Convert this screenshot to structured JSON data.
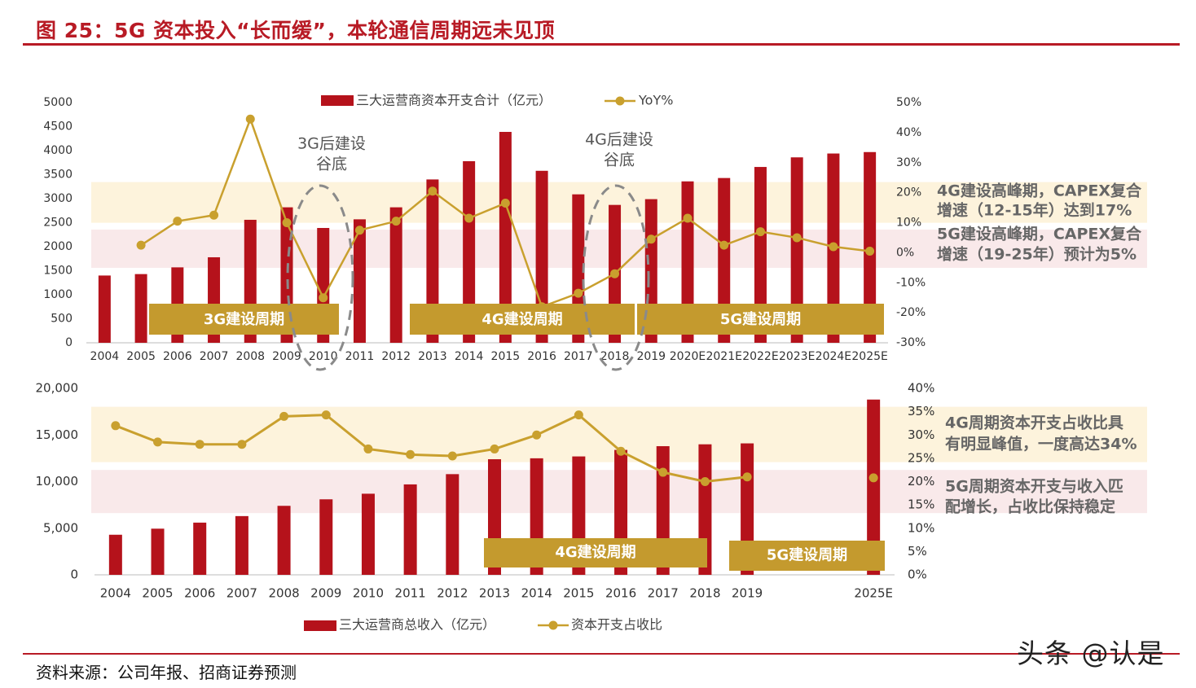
{
  "figure": {
    "title": "图 25：5G 资本投入“长而缓”，本轮通信周期远未见顶",
    "source": "资料来源：公司年报、招商证券预测",
    "watermark": "头条 @认是"
  },
  "colors": {
    "bar": "#b5121b",
    "line": "#c9a02e",
    "label_box": "#c49a2e",
    "band_yellow": "#fdf3dc",
    "band_pink": "#f9e9ea",
    "annotation_text": "#666666",
    "brand_red": "#b81b25"
  },
  "chart_data": [
    {
      "type": "bar",
      "categories": [
        "2004",
        "2005",
        "2006",
        "2007",
        "2008",
        "2009",
        "2010",
        "2011",
        "2012",
        "2013",
        "2014",
        "2015",
        "2016",
        "2017",
        "2018",
        "2019",
        "2020E",
        "2021E",
        "2022E",
        "2023E",
        "2024E",
        "2025E"
      ],
      "series": [
        {
          "name": "三大运营商资本开支合计（亿元）",
          "type": "bar",
          "axis": "left",
          "values": [
            1400,
            1430,
            1570,
            1780,
            2560,
            2820,
            2390,
            2570,
            2820,
            3400,
            3780,
            4390,
            3580,
            3090,
            2870,
            2990,
            3360,
            3430,
            3660,
            3860,
            3940,
            3970
          ]
        },
        {
          "name": "YoY%",
          "type": "line",
          "axis": "right",
          "values": [
            null,
            2.5,
            10.5,
            12.5,
            44.5,
            10,
            -15,
            7.5,
            10.5,
            20.5,
            11.5,
            16.5,
            -18,
            -13.5,
            -7,
            4.5,
            11.5,
            2.5,
            7,
            5,
            2,
            0.5
          ]
        }
      ],
      "ylim": [
        0,
        5000
      ],
      "yticks": [
        "5000",
        "4500",
        "4000",
        "3500",
        "3000",
        "2500",
        "2000",
        "1500",
        "1000",
        "500",
        "0"
      ],
      "y2lim": [
        -30,
        50
      ],
      "y2ticks": [
        "50%",
        "40%",
        "30%",
        "20%",
        "10%",
        "0%",
        "-10%",
        "-20%",
        "-30%"
      ],
      "legend_position": "top-center",
      "period_labels": [
        "3G建设周期",
        "4G建设周期",
        "5G建设周期"
      ],
      "trough_labels": [
        [
          "3G后建设",
          "谷底"
        ],
        [
          "4G后建设",
          "谷底"
        ]
      ],
      "annotations": [
        [
          "4G建设高峰期，CAPEX复合",
          "增速（12-15年）达到17%"
        ],
        [
          "5G建设高峰期，CAPEX复合",
          "增速（19-25年）预计为5%"
        ]
      ]
    },
    {
      "type": "bar",
      "categories": [
        "2004",
        "2005",
        "2006",
        "2007",
        "2008",
        "2009",
        "2010",
        "2011",
        "2012",
        "2013",
        "2014",
        "2015",
        "2016",
        "2017",
        "2018",
        "2019",
        "2025E"
      ],
      "series": [
        {
          "name": "三大运营商总收入（亿元）",
          "type": "bar",
          "axis": "left",
          "values": [
            4300,
            4950,
            5600,
            6300,
            7400,
            8100,
            8700,
            9700,
            10800,
            12400,
            12500,
            12700,
            13400,
            13800,
            14000,
            14100,
            18800
          ]
        },
        {
          "name": "资本开支占收比",
          "type": "line",
          "axis": "right",
          "values": [
            32,
            28.5,
            28,
            28,
            34,
            34.3,
            27,
            25.8,
            25.5,
            27,
            30,
            34.3,
            26.5,
            22,
            20,
            21,
            20.8
          ]
        }
      ],
      "ylim": [
        0,
        20000
      ],
      "yticks": [
        "20,000",
        "15,000",
        "10,000",
        "5,000",
        "0"
      ],
      "y2lim": [
        0,
        40
      ],
      "y2ticks": [
        "40%",
        "35%",
        "30%",
        "25%",
        "20%",
        "15%",
        "10%",
        "5%",
        "0%"
      ],
      "legend_position": "bottom-center",
      "period_labels": [
        "4G建设周期",
        "5G建设周期"
      ],
      "annotations": [
        [
          "4G周期资本开支占收比具",
          "有明显峰值，一度高达34%"
        ],
        [
          "5G周期资本开支与收入匹",
          "配增长，占收比保持稳定"
        ]
      ]
    }
  ]
}
